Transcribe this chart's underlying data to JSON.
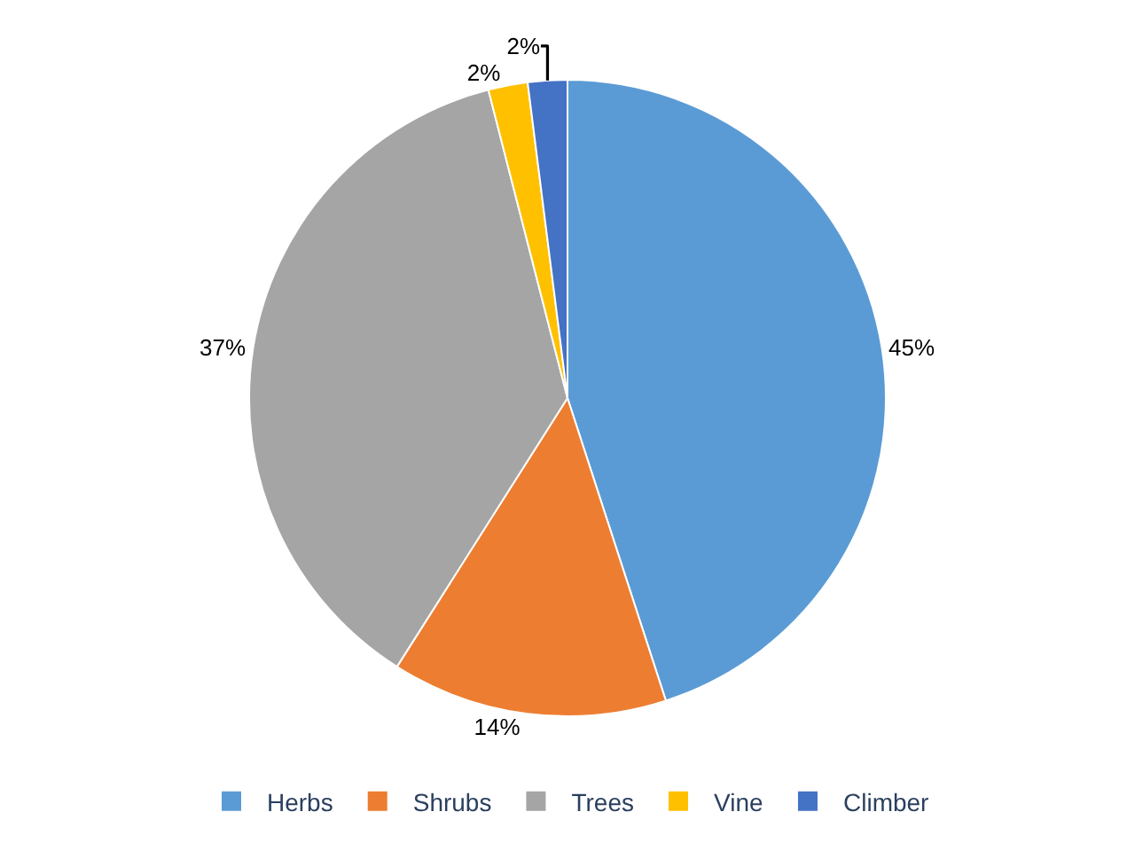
{
  "chart_data": {
    "type": "pie",
    "categories": [
      "Herbs",
      "Shrubs",
      "Trees",
      "Vine",
      "Climber"
    ],
    "values": [
      45,
      14,
      37,
      2,
      2
    ],
    "value_labels": [
      "45%",
      "14%",
      "37%",
      "2%",
      "2%"
    ],
    "colors": [
      "#5b9bd5",
      "#ed7d31",
      "#a5a5a5",
      "#ffc000",
      "#4472c4"
    ],
    "legend": "bottom"
  }
}
